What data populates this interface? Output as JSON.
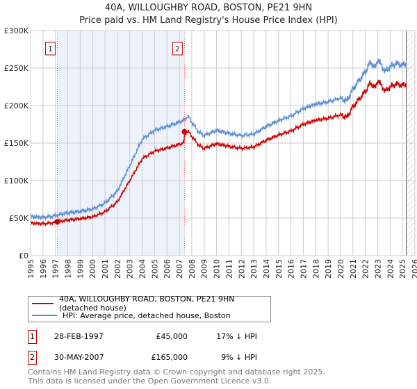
{
  "chart_data": {
    "type": "line",
    "title": "40A, WILLOUGHBY ROAD, BOSTON, PE21 9HN",
    "subtitle": "Price paid vs. HM Land Registry's House Price Index (HPI)",
    "xlim": [
      1995,
      2026
    ],
    "ylim": [
      0,
      300000
    ],
    "yticks": [
      {
        "v": 0,
        "l": "£0"
      },
      {
        "v": 50000,
        "l": "£50K"
      },
      {
        "v": 100000,
        "l": "£100K"
      },
      {
        "v": 150000,
        "l": "£150K"
      },
      {
        "v": 200000,
        "l": "£200K"
      },
      {
        "v": 250000,
        "l": "£250K"
      },
      {
        "v": 300000,
        "l": "£300K"
      }
    ],
    "xticks": [
      "1995",
      "1996",
      "1997",
      "1998",
      "1999",
      "2000",
      "2001",
      "2002",
      "2003",
      "2004",
      "2005",
      "2006",
      "2007",
      "2008",
      "2009",
      "2010",
      "2011",
      "2012",
      "2013",
      "2014",
      "2015",
      "2016",
      "2017",
      "2018",
      "2019",
      "2020",
      "2021",
      "2022",
      "2023",
      "2024",
      "2025",
      "2026"
    ],
    "grid": true,
    "series": [
      {
        "name": "40A, WILLOUGHBY ROAD, BOSTON, PE21 9HN (detached house)",
        "color": "#cc0000"
      },
      {
        "name": "HPI: Average price, detached house, Boston",
        "color": "#5b8fd4",
        "x": [
          1995,
          1996,
          1997,
          1997.16,
          1998,
          1999,
          2000,
          2001,
          2002,
          2003,
          2004,
          2005,
          2006,
          2007,
          2007.41,
          2007.7,
          2008,
          2008.6,
          2009,
          2010,
          2011,
          2012,
          2013,
          2014,
          2015,
          2016,
          2017,
          2018,
          2019,
          2020,
          2020.5,
          2021,
          2022,
          2022.4,
          2022.8,
          2023,
          2023.6,
          2024,
          2024.5,
          2025,
          2025.3
        ],
        "y": [
          52000,
          51000,
          53000,
          54000,
          57000,
          59000,
          62000,
          70000,
          86000,
          120000,
          155000,
          167000,
          172000,
          178000,
          181000,
          186000,
          178000,
          164000,
          160000,
          167000,
          163000,
          160000,
          162000,
          172000,
          180000,
          186000,
          196000,
          202000,
          205000,
          210000,
          206000,
          222000,
          245000,
          258000,
          250000,
          262000,
          245000,
          252000,
          256000,
          254000,
          256000
        ]
      }
    ],
    "sales": [
      {
        "id": "1",
        "date": "28-FEB-1997",
        "x": 1997.16,
        "price": 45000,
        "price_label": "£45,000",
        "hpi_label": "17% ↓ HPI"
      },
      {
        "id": "2",
        "date": "30-MAY-2007",
        "x": 2007.41,
        "price": 165000,
        "price_label": "£165,000",
        "hpi_label": "9% ↓ HPI"
      }
    ],
    "forecast_start": 2025.3
  },
  "footer": {
    "line1": "Contains HM Land Registry data © Crown copyright and database right 2025.",
    "line2": "This data is licensed under the Open Government Licence v3.0."
  }
}
